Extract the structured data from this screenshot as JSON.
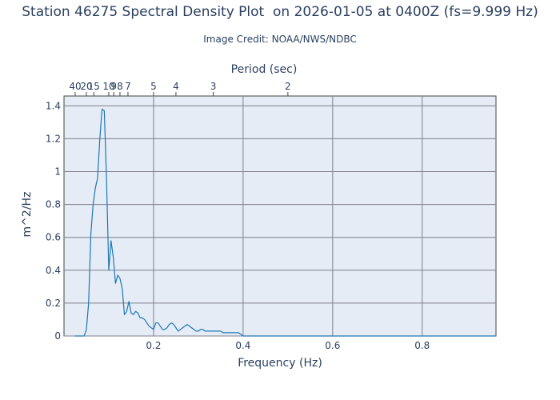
{
  "header": {
    "title": "Station 46275 Spectral Density Plot  on 2026-01-05 at 0400Z (fs=9.999 Hz)",
    "credit": "Image Credit: NOAA/NWS/NDBC"
  },
  "colors": {
    "plot_bg": "#e5ecf6",
    "grid": "#7f7f8c",
    "line": "#1f77b4",
    "text": "#2a3f5f"
  },
  "chart_data": {
    "type": "line",
    "title": "Station 46275 Spectral Density Plot  on 2026-01-05 at 0400Z (fs=9.999 Hz)",
    "xlabel": "Frequency (Hz)",
    "ylabel": "m^2/Hz",
    "x2label": "Period (sec)",
    "xlim": [
      0.0,
      0.9648
    ],
    "ylim": [
      0,
      1.4599
    ],
    "grid": true,
    "x_ticks": [
      0.2,
      0.4,
      0.6,
      0.8
    ],
    "x_tick_labels": [
      "0.2",
      "0.4",
      "0.6",
      "0.8"
    ],
    "y_ticks": [
      0,
      0.2,
      0.4,
      0.6,
      0.8,
      1,
      1.2,
      1.4
    ],
    "y_tick_labels": [
      "0",
      "0.2",
      "0.4",
      "0.6",
      "0.8",
      "1",
      "1.2",
      "1.4"
    ],
    "period_ticks": [
      40,
      20,
      15,
      10,
      9,
      8,
      7,
      5,
      4,
      3,
      2
    ],
    "period_tick_labels": [
      "40",
      "20",
      "15",
      "10",
      "9",
      "8",
      "7",
      "5",
      "4",
      "3",
      "2"
    ],
    "series": [
      {
        "x": [
          0.025,
          0.035,
          0.045,
          0.05,
          0.055,
          0.06,
          0.065,
          0.07,
          0.075,
          0.08,
          0.085,
          0.09,
          0.095,
          0.1,
          0.105,
          0.11,
          0.115,
          0.12,
          0.125,
          0.13,
          0.135,
          0.14,
          0.145,
          0.15,
          0.155,
          0.16,
          0.165,
          0.17,
          0.175,
          0.18,
          0.185,
          0.19,
          0.195,
          0.2,
          0.205,
          0.21,
          0.215,
          0.22,
          0.225,
          0.23,
          0.235,
          0.24,
          0.245,
          0.25,
          0.255,
          0.26,
          0.265,
          0.27,
          0.275,
          0.28,
          0.285,
          0.29,
          0.295,
          0.3,
          0.305,
          0.31,
          0.315,
          0.32,
          0.325,
          0.33,
          0.335,
          0.34,
          0.345,
          0.35,
          0.355,
          0.36,
          0.365,
          0.37,
          0.375,
          0.38,
          0.385,
          0.39,
          0.395,
          0.4,
          0.45,
          0.5,
          0.55,
          0.6,
          0.65,
          0.7,
          0.75,
          0.8,
          0.85,
          0.9,
          0.95,
          0.9648
        ],
        "y": [
          0.0,
          0.0,
          0.0,
          0.04,
          0.2,
          0.62,
          0.8,
          0.9,
          0.96,
          1.2,
          1.38,
          1.37,
          0.95,
          0.4,
          0.58,
          0.48,
          0.32,
          0.37,
          0.35,
          0.29,
          0.13,
          0.15,
          0.21,
          0.14,
          0.13,
          0.15,
          0.14,
          0.11,
          0.11,
          0.1,
          0.08,
          0.06,
          0.05,
          0.04,
          0.08,
          0.08,
          0.06,
          0.04,
          0.04,
          0.05,
          0.07,
          0.08,
          0.07,
          0.05,
          0.03,
          0.04,
          0.05,
          0.06,
          0.07,
          0.06,
          0.05,
          0.04,
          0.03,
          0.03,
          0.04,
          0.04,
          0.03,
          0.03,
          0.03,
          0.03,
          0.03,
          0.03,
          0.03,
          0.03,
          0.02,
          0.02,
          0.02,
          0.02,
          0.02,
          0.02,
          0.02,
          0.02,
          0.01,
          0.0,
          0.0,
          0.0,
          0.0,
          0.0,
          0.0,
          0.0,
          0.0,
          0.0,
          0.0,
          0.0,
          0.0,
          0.0
        ]
      }
    ]
  }
}
